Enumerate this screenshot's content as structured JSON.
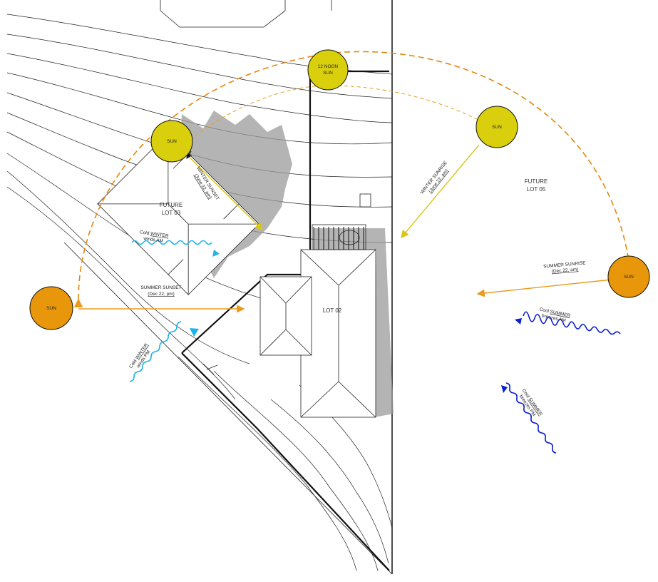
{
  "lots": {
    "future_lot_03": [
      "FUTURE",
      "LOT 03"
    ],
    "future_lot_05": [
      "FUTURE",
      "LOT 05"
    ],
    "lot_02": "LOT 02"
  },
  "suns": {
    "noon": [
      "12 NOON",
      "SUN"
    ],
    "winter_sunrise": "SUN",
    "winter_sunset": "SUN",
    "summer_sunrise": "SUN",
    "summer_sunset": "SUN"
  },
  "arrows": {
    "winter_sunrise": {
      "title": "WINTER SUNRISE",
      "date": "(June 22, am)"
    },
    "winter_sunset": {
      "title": "WINTER SUNSET",
      "date": "(June 22, pm)"
    },
    "summer_sunrise": {
      "title": "SUMMER SUNRISE",
      "date": "(Dec 22, am)"
    },
    "summer_sunset": {
      "title": "SUMMER SUNSET",
      "date": "(Dec 22, pm)"
    }
  },
  "winds": {
    "cold_winter_am": {
      "prefix": "Cold ",
      "season": "WINTER",
      "time": "winds AM"
    },
    "cold_winter_pm": {
      "prefix": "Cold ",
      "season": "WINTER",
      "time": "winds PM"
    },
    "cool_summer_am": {
      "prefix": "Cool ",
      "season": "SUMMER",
      "time": "breezes AM"
    },
    "cool_summer_pm": {
      "prefix": "Cool ",
      "season": "SUMMER",
      "time": "breezes PM"
    }
  },
  "colors": {
    "winter_sun": "#d9cf0d",
    "summer_sun": "#e8960a",
    "summer_arc": "#e8850a",
    "winter_arrow": "#d8c61a",
    "summer_arrow": "#ec9a1e",
    "cold_wind": "#1fb3ea",
    "cool_wind": "#0a1fd0",
    "shadow": "#9b9b9b"
  }
}
